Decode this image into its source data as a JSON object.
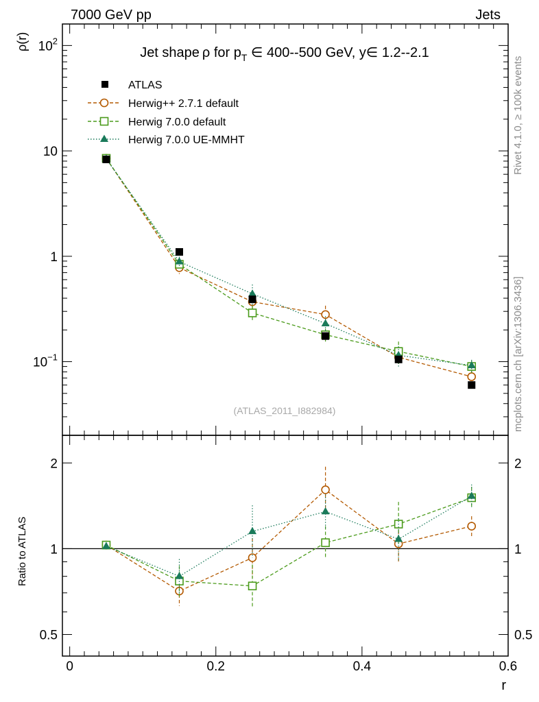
{
  "header": {
    "left": "7000 GeV pp",
    "right": "Jets"
  },
  "side_text": {
    "rivet": "Rivet 4.1.0, ≥ 100k events",
    "mcplots": "mcplots.cern.ch [arXiv:1306.3436]"
  },
  "colors": {
    "atlas": "#000000",
    "herwigpp": "#b35900",
    "herwig700": "#4a9a1a",
    "ue": "#1a7a5a"
  },
  "chart_data": [
    {
      "type": "scatter",
      "title": "Jet shape ρ for p_T ∈ 400--500 GeV, y∈ 1.2--2.1",
      "title_parts": {
        "a": "Jet shape",
        "rho": "ρ",
        "b": " for p",
        "sub": "T",
        "c": " ∈ 400--500 GeV, y∈ 1.2--2.1"
      },
      "ylabel": "ρ(r)",
      "yscale": "log",
      "ylim": [
        0.02,
        160
      ],
      "xlim": [
        -0.01,
        0.6
      ],
      "yticks": [
        {
          "v": 100,
          "base": "10",
          "exp": "2"
        },
        {
          "v": 10,
          "base": "10",
          "exp": ""
        },
        {
          "v": 1,
          "base": "1",
          "exp": ""
        },
        {
          "v": 0.1,
          "base": "10",
          "exp": "−1"
        }
      ],
      "watermark": "(ATLAS_2011_I882984)",
      "legend_position": "top-left",
      "x": [
        0.05,
        0.15,
        0.25,
        0.35,
        0.45,
        0.55
      ],
      "series": [
        {
          "name": "ATLAS",
          "marker": "filled-square",
          "values": [
            8.3,
            1.1,
            0.39,
            0.175,
            0.105,
            0.06
          ]
        },
        {
          "name": "Herwig++ 2.7.1 default",
          "marker": "open-circle",
          "line": "dashed",
          "values": [
            8.5,
            0.78,
            0.37,
            0.28,
            0.11,
            0.072
          ],
          "errors": [
            0.15,
            0.1,
            0.06,
            0.06,
            0.015,
            0.01
          ]
        },
        {
          "name": "Herwig 7.0.0 default",
          "marker": "open-square",
          "line": "dashed",
          "values": [
            8.5,
            0.84,
            0.29,
            0.18,
            0.125,
            0.09
          ],
          "errors": [
            0.15,
            0.1,
            0.05,
            0.025,
            0.03,
            0.012
          ]
        },
        {
          "name": "Herwig 7.0.0 UE-MMHT",
          "marker": "filled-triangle",
          "line": "dotted",
          "values": [
            8.4,
            0.89,
            0.44,
            0.23,
            0.115,
            0.092
          ],
          "errors": [
            0.15,
            0.1,
            0.1,
            0.04,
            0.025,
            0.012
          ]
        }
      ]
    },
    {
      "type": "scatter",
      "ylabel": "Ratio to ATLAS",
      "xlabel": "r",
      "yscale": "log",
      "ylim": [
        0.42,
        2.5
      ],
      "xlim": [
        -0.01,
        0.6
      ],
      "yticks": [
        0.5,
        1,
        2
      ],
      "xticks": [
        0,
        0.2,
        0.4,
        0.6
      ],
      "x": [
        0.05,
        0.15,
        0.25,
        0.35,
        0.45,
        0.55
      ],
      "series": [
        {
          "name": "Herwig++ 2.7.1 default",
          "values": [
            1.03,
            0.71,
            0.93,
            1.61,
            1.04,
            1.2
          ],
          "err_hi": [
            0.03,
            0.08,
            0.16,
            0.33,
            0.17,
            0.1
          ],
          "err_lo": [
            0.03,
            0.08,
            0.14,
            0.29,
            0.15,
            0.1
          ]
        },
        {
          "name": "Herwig 7.0.0 default",
          "values": [
            1.03,
            0.77,
            0.74,
            1.05,
            1.22,
            1.51
          ],
          "err_hi": [
            0.03,
            0.1,
            0.14,
            0.15,
            0.24,
            0.14
          ],
          "err_lo": [
            0.03,
            0.1,
            0.12,
            0.13,
            0.2,
            0.12
          ]
        },
        {
          "name": "Herwig 7.0.0 UE-MMHT",
          "values": [
            1.02,
            0.8,
            1.15,
            1.35,
            1.08,
            1.53
          ],
          "err_hi": [
            0.03,
            0.12,
            0.27,
            0.2,
            0.2,
            0.15
          ],
          "err_lo": [
            0.03,
            0.11,
            0.22,
            0.17,
            0.17,
            0.13
          ]
        }
      ]
    }
  ]
}
